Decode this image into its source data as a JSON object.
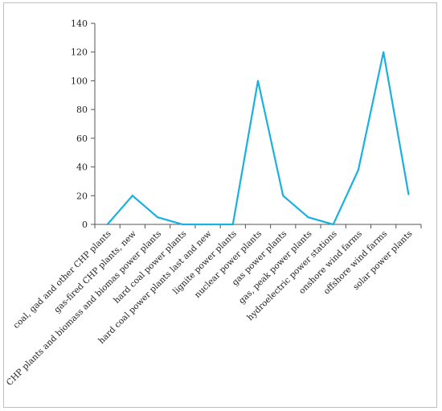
{
  "chart_data": {
    "type": "line",
    "title": "",
    "xlabel": "",
    "ylabel": "",
    "ylim": [
      0,
      140
    ],
    "yticks": [
      0,
      20,
      40,
      60,
      80,
      100,
      120,
      140
    ],
    "grid": false,
    "legend": "none",
    "line_color": "#1ab0e0",
    "categories": [
      "coal, gad and other CHP plants",
      "gas-fired CHP plants, new",
      "CHP plants and biomass and biomas power plants",
      "hard coal power plants",
      "hard coal power plants last and new",
      "lignite power plants",
      "nuclear power plants",
      "gas power plants",
      "gas, peak power plants",
      "hydroelectric power stations",
      "onshore wind farms",
      "offshore wind farms",
      "solar power plants"
    ],
    "series": [
      {
        "values": [
          0,
          20,
          5,
          0,
          0,
          0,
          100,
          20,
          5,
          0,
          38,
          120,
          21
        ]
      }
    ]
  }
}
